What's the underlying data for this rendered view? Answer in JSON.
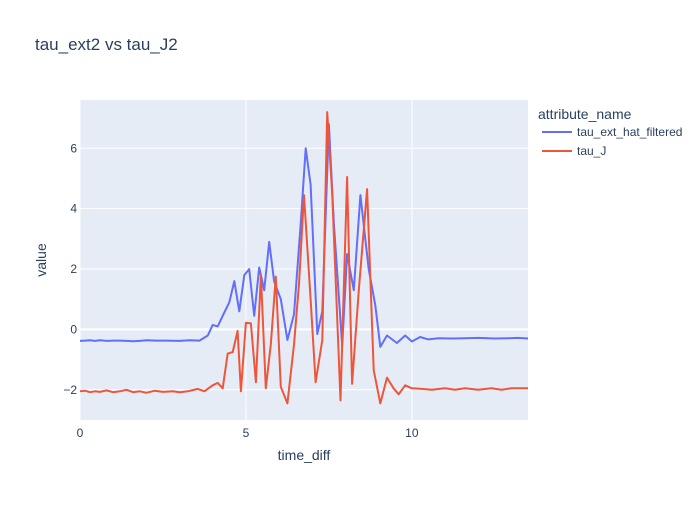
{
  "chart_data": {
    "type": "line",
    "title": "tau_ext2 vs tau_J2",
    "xlabel": "time_diff",
    "ylabel": "value",
    "xlim": [
      0,
      13.5
    ],
    "ylim": [
      -3,
      7.6
    ],
    "xticks": [
      0,
      5,
      10
    ],
    "yticks": [
      -2,
      0,
      2,
      4,
      6
    ],
    "grid": true,
    "legend_title": "attribute_name",
    "legend_position": "right",
    "series": [
      {
        "name": "tau_ext_hat_filtered",
        "color": "#636efa",
        "points": [
          [
            0,
            -0.38
          ],
          [
            0.15,
            -0.37
          ],
          [
            0.3,
            -0.36
          ],
          [
            0.45,
            -0.38
          ],
          [
            0.6,
            -0.36
          ],
          [
            0.8,
            -0.38
          ],
          [
            1.0,
            -0.37
          ],
          [
            1.2,
            -0.37
          ],
          [
            1.4,
            -0.38
          ],
          [
            1.6,
            -0.39
          ],
          [
            1.8,
            -0.38
          ],
          [
            2.0,
            -0.36
          ],
          [
            2.3,
            -0.37
          ],
          [
            2.6,
            -0.37
          ],
          [
            3.0,
            -0.38
          ],
          [
            3.3,
            -0.36
          ],
          [
            3.6,
            -0.37
          ],
          [
            3.85,
            -0.2
          ],
          [
            4.0,
            0.15
          ],
          [
            4.15,
            0.1
          ],
          [
            4.3,
            0.45
          ],
          [
            4.5,
            0.9
          ],
          [
            4.65,
            1.6
          ],
          [
            4.8,
            0.6
          ],
          [
            4.95,
            1.8
          ],
          [
            5.1,
            2.0
          ],
          [
            5.25,
            0.45
          ],
          [
            5.4,
            2.05
          ],
          [
            5.55,
            1.3
          ],
          [
            5.7,
            2.9
          ],
          [
            5.85,
            1.6
          ],
          [
            6.05,
            1.0
          ],
          [
            6.25,
            -0.35
          ],
          [
            6.45,
            0.5
          ],
          [
            6.65,
            3.5
          ],
          [
            6.8,
            6.0
          ],
          [
            6.95,
            4.8
          ],
          [
            7.15,
            -0.15
          ],
          [
            7.3,
            0.6
          ],
          [
            7.5,
            6.8
          ],
          [
            7.65,
            3.5
          ],
          [
            7.9,
            -0.55
          ],
          [
            8.05,
            2.5
          ],
          [
            8.25,
            1.3
          ],
          [
            8.45,
            4.45
          ],
          [
            8.7,
            2.0
          ],
          [
            8.9,
            0.8
          ],
          [
            9.05,
            -0.58
          ],
          [
            9.25,
            -0.2
          ],
          [
            9.55,
            -0.45
          ],
          [
            9.8,
            -0.2
          ],
          [
            10.0,
            -0.4
          ],
          [
            10.25,
            -0.25
          ],
          [
            10.5,
            -0.33
          ],
          [
            10.8,
            -0.29
          ],
          [
            11.2,
            -0.3
          ],
          [
            11.6,
            -0.29
          ],
          [
            12.0,
            -0.28
          ],
          [
            12.5,
            -0.3
          ],
          [
            12.9,
            -0.29
          ],
          [
            13.2,
            -0.28
          ],
          [
            13.5,
            -0.3
          ]
        ]
      },
      {
        "name": "tau_J",
        "color": "#ef553b",
        "points": [
          [
            0,
            -2.05
          ],
          [
            0.15,
            -2.03
          ],
          [
            0.3,
            -2.08
          ],
          [
            0.45,
            -2.05
          ],
          [
            0.6,
            -2.07
          ],
          [
            0.8,
            -2.02
          ],
          [
            1.0,
            -2.08
          ],
          [
            1.2,
            -2.05
          ],
          [
            1.4,
            -2.0
          ],
          [
            1.6,
            -2.08
          ],
          [
            1.8,
            -2.05
          ],
          [
            2.0,
            -2.1
          ],
          [
            2.25,
            -2.03
          ],
          [
            2.5,
            -2.07
          ],
          [
            2.8,
            -2.05
          ],
          [
            3.0,
            -2.08
          ],
          [
            3.25,
            -2.05
          ],
          [
            3.55,
            -1.97
          ],
          [
            3.75,
            -2.05
          ],
          [
            4.0,
            -1.85
          ],
          [
            4.15,
            -1.77
          ],
          [
            4.3,
            -1.95
          ],
          [
            4.45,
            -0.8
          ],
          [
            4.6,
            -0.75
          ],
          [
            4.75,
            -0.05
          ],
          [
            4.85,
            -2.05
          ],
          [
            5.0,
            0.22
          ],
          [
            5.15,
            0.2
          ],
          [
            5.3,
            -1.75
          ],
          [
            5.45,
            1.8
          ],
          [
            5.6,
            -1.95
          ],
          [
            5.75,
            -0.5
          ],
          [
            5.9,
            1.75
          ],
          [
            6.05,
            -1.9
          ],
          [
            6.25,
            -2.45
          ],
          [
            6.45,
            -0.5
          ],
          [
            6.6,
            1.5
          ],
          [
            6.75,
            4.45
          ],
          [
            6.95,
            1.0
          ],
          [
            7.1,
            -1.75
          ],
          [
            7.3,
            -0.35
          ],
          [
            7.45,
            7.2
          ],
          [
            7.6,
            4.5
          ],
          [
            7.85,
            -2.35
          ],
          [
            8.05,
            5.05
          ],
          [
            8.2,
            -1.8
          ],
          [
            8.4,
            1.3
          ],
          [
            8.65,
            4.65
          ],
          [
            8.85,
            -1.35
          ],
          [
            9.05,
            -2.45
          ],
          [
            9.25,
            -1.6
          ],
          [
            9.45,
            -1.95
          ],
          [
            9.6,
            -2.15
          ],
          [
            9.8,
            -1.85
          ],
          [
            10.0,
            -1.95
          ],
          [
            10.3,
            -1.97
          ],
          [
            10.6,
            -2.0
          ],
          [
            11.0,
            -1.95
          ],
          [
            11.3,
            -2.0
          ],
          [
            11.6,
            -1.95
          ],
          [
            12.0,
            -2.0
          ],
          [
            12.4,
            -1.95
          ],
          [
            12.7,
            -2.0
          ],
          [
            13.0,
            -1.95
          ],
          [
            13.5,
            -1.95
          ]
        ]
      }
    ]
  }
}
